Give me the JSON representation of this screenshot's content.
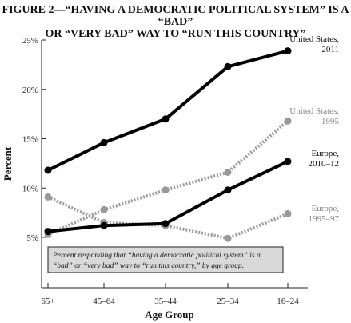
{
  "chart_data": {
    "type": "line",
    "title_lines": [
      "FIGURE 2—“HAVING A DEMOCRATIC POLITICAL SYSTEM” IS A “BAD”",
      "OR “VERY BAD” WAY TO “RUN THIS COUNTRY”"
    ],
    "xlabel": "Age Group",
    "ylabel": "Percent",
    "categories": [
      "65+",
      "45–64",
      "35–44",
      "25–34",
      "16–24"
    ],
    "ylim": [
      5,
      25
    ],
    "yticks": [
      "5%",
      "10%",
      "15%",
      "20%",
      "25%"
    ],
    "series": [
      {
        "name": "United States, 2011",
        "label_lines": [
          "United States,",
          "2011"
        ],
        "style": "solid",
        "color": "#000000",
        "values": [
          11.8,
          14.6,
          17.0,
          22.3,
          23.9
        ]
      },
      {
        "name": "United States, 1995",
        "label_lines": [
          "United States,",
          "1995"
        ],
        "style": "dotted",
        "color": "#999999",
        "values": [
          5.3,
          7.8,
          9.8,
          11.6,
          16.8
        ]
      },
      {
        "name": "Europe, 2010–12",
        "label_lines": [
          "Europe,",
          "2010–12"
        ],
        "style": "solid",
        "color": "#000000",
        "values": [
          5.6,
          6.2,
          6.4,
          9.8,
          12.7
        ]
      },
      {
        "name": "Europe, 1995–97",
        "label_lines": [
          "Europe,",
          "1995–97"
        ],
        "style": "dotted",
        "color": "#999999",
        "values": [
          9.1,
          6.5,
          6.2,
          4.9,
          7.4
        ]
      }
    ],
    "note_lines": [
      "Percent responding that “having a democratic political system” is a",
      "“bad” or “very bad” way to “run this country,” by age group."
    ],
    "grid": false,
    "colors": {
      "solid": "#000000",
      "dotted": "#999999",
      "note_bg": "#d9d9d9"
    }
  }
}
